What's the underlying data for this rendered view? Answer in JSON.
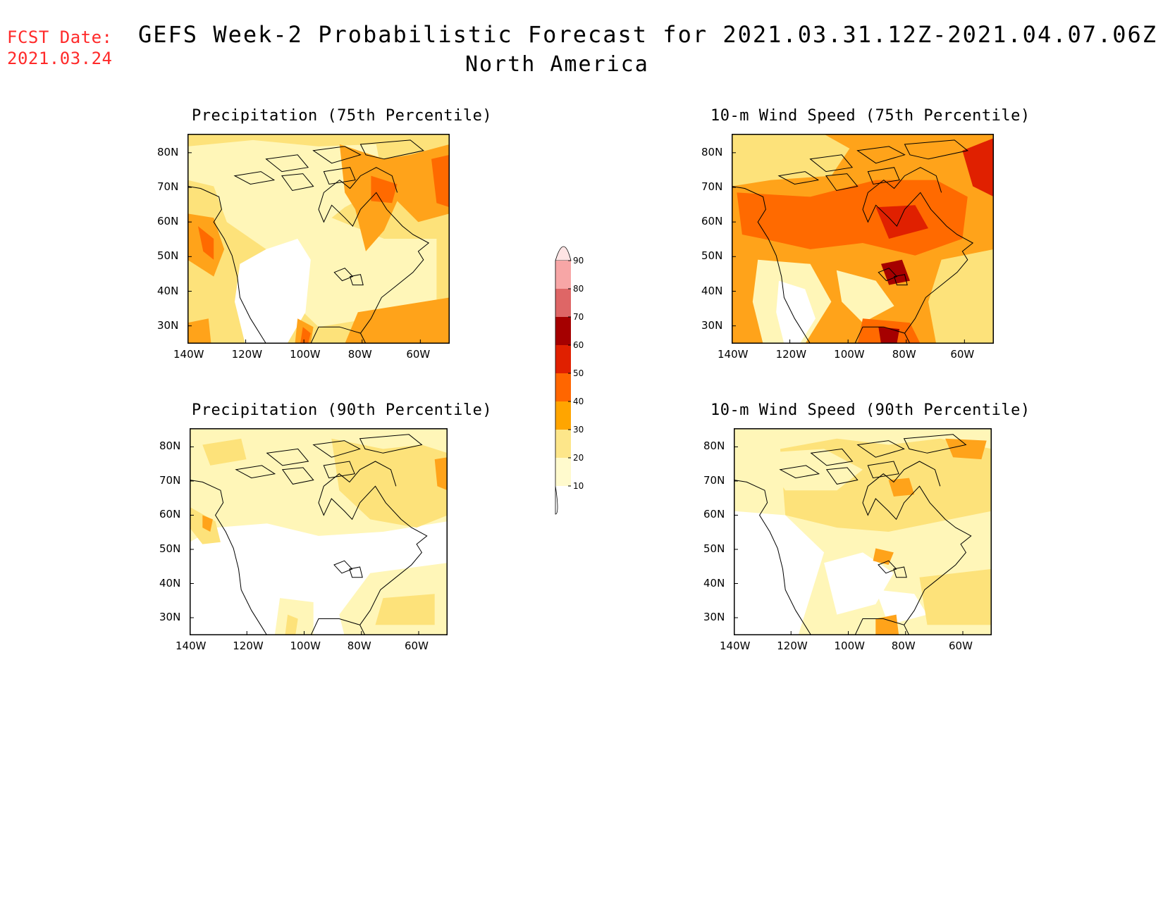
{
  "fcst": {
    "label": "FCST Date:",
    "date": "2021.03.24"
  },
  "title": {
    "line1": "GEFS Week-2 Probabilistic Forecast for 2021.03.31.12Z-2021.04.07.06Z",
    "line2": "North America"
  },
  "panels": [
    {
      "id": "precip75",
      "title": "Precipitation (75th Percentile)"
    },
    {
      "id": "wind75",
      "title": "10-m Wind Speed (75th Percentile)"
    },
    {
      "id": "precip90",
      "title": "Precipitation (90th Percentile)"
    },
    {
      "id": "wind90",
      "title": "10-m Wind Speed (90th Percentile)"
    }
  ],
  "axes": {
    "lat_ticks": [
      "80N",
      "70N",
      "60N",
      "50N",
      "40N",
      "30N"
    ],
    "lon_ticks": [
      "140W",
      "120W",
      "100W",
      "80W",
      "60W"
    ]
  },
  "colorbar": {
    "levels": [
      "10",
      "20",
      "30",
      "40",
      "50",
      "60",
      "70",
      "80",
      "90"
    ],
    "colors": [
      "#fffacd",
      "#fde68a",
      "#ffa500",
      "#ff6600",
      "#e02000",
      "#a50000",
      "#de6666",
      "#f7a6a6",
      "#ffe4e4"
    ]
  },
  "palette": {
    "white": "#ffffff",
    "c10": "#fff6b8",
    "c20": "#fde27a",
    "c30": "#ffa31a",
    "c40": "#ff6a00",
    "c50": "#e02000",
    "c60": "#a50000"
  }
}
